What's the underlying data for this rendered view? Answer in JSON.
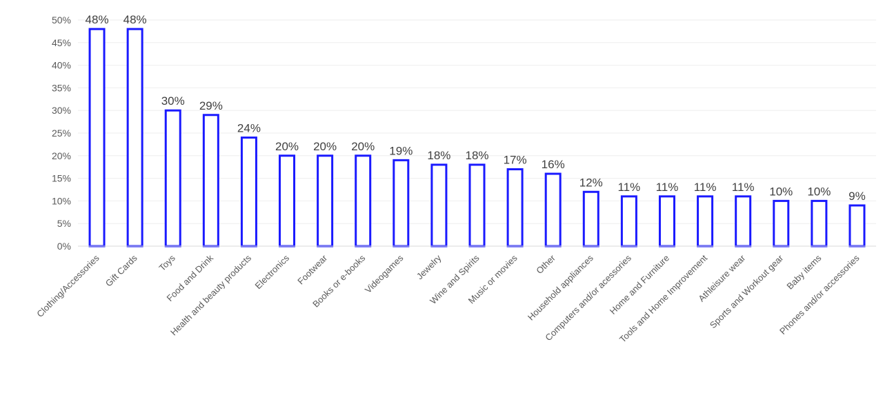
{
  "chart_data": {
    "type": "bar",
    "categories": [
      "Clothing/Accessories",
      "Gift Cards",
      "Toys",
      "Food and Drink",
      "Health and beauty products",
      "Electronics",
      "Footwear",
      "Books or e-books",
      "Videogames",
      "Jewelry",
      "Wine and Spirits",
      "Music or movies",
      "Other",
      "Household appliances",
      "Computers and/or acessories",
      "Home and Furniture",
      "Tools and Home Improvement",
      "Athleisure wear",
      "Sports and Workout gear",
      "Baby items",
      "Phones and/or accessories"
    ],
    "values": [
      48,
      48,
      30,
      29,
      24,
      20,
      20,
      20,
      19,
      18,
      18,
      17,
      16,
      12,
      11,
      11,
      11,
      11,
      10,
      10,
      9
    ],
    "data_labels": [
      "48%",
      "48%",
      "30%",
      "29%",
      "24%",
      "20%",
      "20%",
      "20%",
      "19%",
      "18%",
      "18%",
      "17%",
      "16%",
      "12%",
      "11%",
      "11%",
      "11%",
      "11%",
      "10%",
      "10%",
      "9%"
    ],
    "y_ticks": [
      0,
      5,
      10,
      15,
      20,
      25,
      30,
      35,
      40,
      45,
      50
    ],
    "y_tick_labels": [
      "0%",
      "5%",
      "10%",
      "15%",
      "20%",
      "25%",
      "30%",
      "35%",
      "40%",
      "45%",
      "50%"
    ],
    "ylim": [
      0,
      50
    ],
    "title": "",
    "xlabel": "",
    "ylabel": "",
    "grid": true,
    "legend": "none",
    "colors": {
      "bar_stroke": "#1a1aff",
      "bar_fill": "#ffffff",
      "grid": "#eeeeee",
      "axis": "#d9d9d9"
    }
  }
}
